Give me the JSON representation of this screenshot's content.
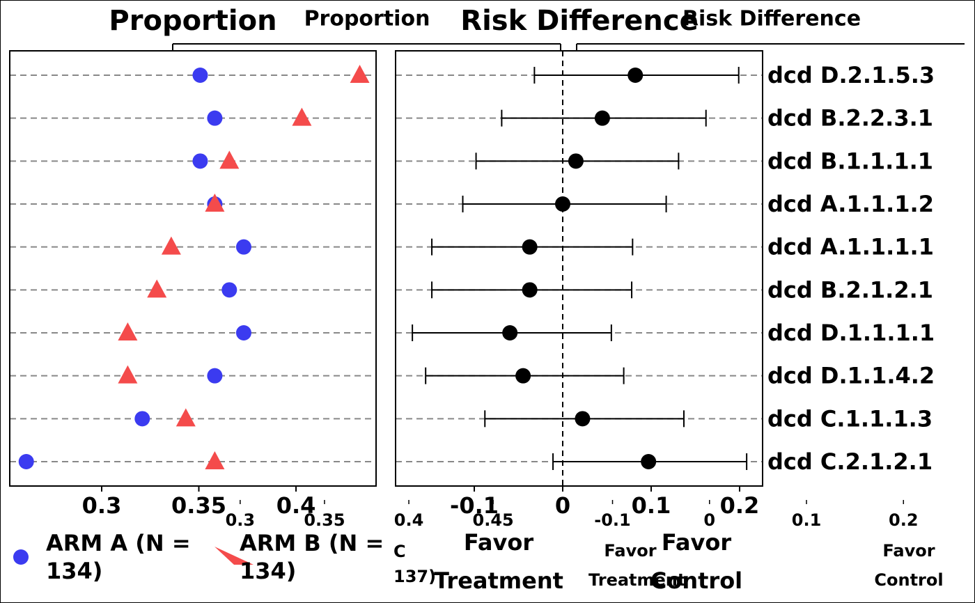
{
  "chart_data": [
    {
      "type": "forest",
      "title": "Proportion",
      "title2": "Risk Difference",
      "categories": [
        "dcd D.2.1.5.3",
        "dcd B.2.2.3.1",
        "dcd B.1.1.1.1",
        "dcd A.1.1.1.2",
        "dcd A.1.1.1.1",
        "dcd B.2.1.2.1",
        "dcd D.1.1.1.1",
        "dcd D.1.1.4.2",
        "dcd C.1.1.1.3",
        "dcd C.2.1.2.1"
      ],
      "series": [
        {
          "name": "ARM A (N = 134)",
          "color": "#3b3bf0",
          "marker": "circle",
          "values": [
            0.3507,
            0.3582,
            0.3507,
            0.3582,
            0.3731,
            0.3657,
            0.3731,
            0.3582,
            0.3209,
            0.2612
          ]
        },
        {
          "name": "ARM B (N = 134)",
          "color": "#f44b4b",
          "marker": "triangle",
          "values": [
            0.4328,
            0.403,
            0.3657,
            0.3582,
            0.3358,
            0.3284,
            0.3134,
            0.3134,
            0.3433,
            0.3582
          ]
        }
      ],
      "risk_difference": {
        "color": "#000000",
        "values": [
          0.0821,
          0.0448,
          0.0149,
          0.0,
          -0.0373,
          -0.0373,
          -0.0597,
          -0.0448,
          0.0224,
          0.097
        ],
        "lower": [
          -0.032,
          -0.069,
          -0.098,
          -0.113,
          -0.148,
          -0.148,
          -0.17,
          -0.155,
          -0.088,
          -0.011
        ],
        "upper": [
          0.199,
          0.162,
          0.131,
          0.117,
          0.079,
          0.078,
          0.055,
          0.069,
          0.137,
          0.208
        ]
      },
      "xlim": [
        0.2527,
        0.4412
      ],
      "xticks": [
        0.3,
        0.35,
        0.4
      ],
      "x2lim": [
        -0.189,
        0.226
      ],
      "x2ticks": [
        -0.1,
        0.0,
        0.1,
        0.2
      ],
      "x2tick_labels": [
        "-0.1",
        "0.0",
        "0.1",
        "0.2"
      ],
      "favor_left": "Favor Treatment",
      "favor_right": "Favor Control",
      "grid": true
    },
    {
      "type": "forest",
      "title": "Proportion",
      "title2": "Risk Difference",
      "xlim": [
        0.26,
        0.49
      ],
      "xticks": [
        0.3,
        0.35,
        0.4,
        0.45
      ],
      "xtick_labels": [
        "0.30",
        "0.35",
        "0.40",
        "0.45"
      ],
      "x2lim": [
        -0.137,
        0.263
      ],
      "x2ticks": [
        -0.1,
        0.0,
        0.1,
        0.2
      ],
      "x2tick_labels": [
        "-0.1",
        "0.0",
        "0.1",
        "0.2"
      ],
      "favor_left": "Favor Treatment",
      "favor_right": "Favor Control",
      "legend_fragment": "C 137)"
    }
  ]
}
